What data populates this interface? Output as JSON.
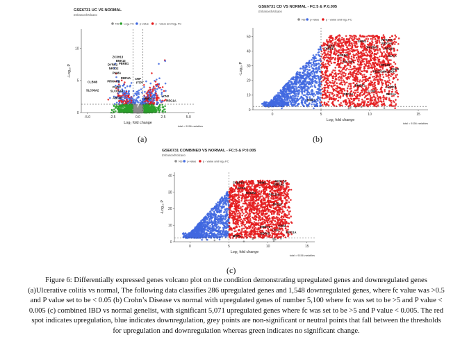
{
  "figure": {
    "label_a": "(a)",
    "label_b": "(b)",
    "label_c": "(c)",
    "caption": "Figure 6: Differentially expressed genes volcano plot on the condition demonstrating upregulated genes and downregulated genes (a)Ulcerative colitis vs normal, The following data classifies 286 upregulated genes and 1,548 downregulated genes, where fc value was >0.5 and P value set to be < 0.05 (b) Crohn’s Disease vs normal with upregulated genes of number 5,100 where fc was set to be >5 and P value < 0.005 (c) combined IBD vs normal genelist, with significant 5,071 upregulated genes where fc was set to be >5 and P value < 0.005. The red spot indicates upregulation, blue indicates downregulation, grey points are non-significant or neutral points that fall between the thresholds for upregulation and downregulation whereas green indicates no significant change."
  },
  "colors": {
    "ns": "#8c8c8c",
    "logfc": "#2ca02c",
    "pvalue": "#4169e1",
    "both": "#e41a1c",
    "axis": "#444444"
  },
  "chart_data": [
    {
      "type": "scatter",
      "title": "GSE6731 UC VS NORMAL",
      "subtitle": "EnhancedVolcano",
      "xlabel": "Log₂ fold change",
      "ylabel": "-Log₁₀ P",
      "xlim": [
        -5.6,
        5.6
      ],
      "ylim": [
        0,
        13
      ],
      "xticks": [
        -5.0,
        -2.5,
        0.0,
        2.5,
        5.0
      ],
      "yticks": [
        0,
        5,
        10
      ],
      "vlines": [
        -0.5,
        0.5
      ],
      "hline": 1.3,
      "legend": [
        "NS",
        "Log₂ FC",
        "p-value",
        "p - value and log₂ FC"
      ],
      "legend_position": "top",
      "footer": "total = 9156 variables",
      "labels": [
        {
          "text": "ZC3H13",
          "x": -2.0,
          "y": 8.5
        },
        {
          "text": "BNK13",
          "x": -1.7,
          "y": 7.9
        },
        {
          "text": "DYRK2",
          "x": -2.5,
          "y": 7.3
        },
        {
          "text": "PBRB1",
          "x": -1.4,
          "y": 7.5
        },
        {
          "text": "NR1D2",
          "x": -2.4,
          "y": 6.7
        },
        {
          "text": "PNMA",
          "x": -2.1,
          "y": 6.0
        },
        {
          "text": "CLBN8",
          "x": -4.5,
          "y": 4.6
        },
        {
          "text": "PRMACB",
          "x": -2.4,
          "y": 4.7
        },
        {
          "text": "RBP4A",
          "x": -1.2,
          "y": 5.2
        },
        {
          "text": "CRP",
          "x": 0.0,
          "y": 5.1
        },
        {
          "text": "PTPT",
          "x": 0.2,
          "y": 4.5
        },
        {
          "text": "PLIN2",
          "x": -2.1,
          "y": 3.8
        },
        {
          "text": "SLC06A2",
          "x": -4.5,
          "y": 3.3
        },
        {
          "text": "SLC6A14",
          "x": -2.1,
          "y": 3.2
        },
        {
          "text": "ABCB1",
          "x": -2.0,
          "y": 2.1
        },
        {
          "text": "MMP9",
          "x": 1.0,
          "y": 2.0
        },
        {
          "text": "LCN2",
          "x": 2.7,
          "y": 2.4
        },
        {
          "text": "REG1A",
          "x": 3.3,
          "y": 1.7
        }
      ]
    },
    {
      "type": "scatter",
      "title": "GSE6731 CD VS NORMAL - FC:5 & P:0.005",
      "subtitle": "EnhancedVolcano",
      "xlabel": "Log₂ fold change",
      "ylabel": "-Log₁₀ P",
      "xlim": [
        -2,
        16
      ],
      "ylim": [
        0,
        56
      ],
      "xticks": [
        0,
        5,
        10,
        15
      ],
      "yticks": [
        0,
        10,
        20,
        30,
        40,
        50
      ],
      "vlines": [
        5
      ],
      "hline": 2.3,
      "legend": [
        "NS",
        "p-value",
        "p - value and log₂ FC"
      ],
      "legend_position": "top",
      "footer": "total = 9156 variables",
      "labels": [
        {
          "text": "RPS27A",
          "x": 11.8,
          "y": 47
        },
        {
          "text": "GRM4",
          "x": 9.2,
          "y": 46
        },
        {
          "text": "EEF1A1",
          "x": 11.8,
          "y": 44.5
        },
        {
          "text": "STK4",
          "x": 6.0,
          "y": 43
        },
        {
          "text": "SNOB03",
          "x": 10.2,
          "y": 42
        },
        {
          "text": "RPS20",
          "x": 12.0,
          "y": 41
        },
        {
          "text": "FKBP5",
          "x": 5.8,
          "y": 41
        },
        {
          "text": "NSUN2",
          "x": 7.3,
          "y": 36.5
        },
        {
          "text": "HLA-A",
          "x": 12.3,
          "y": 36
        },
        {
          "text": "RPL23A",
          "x": 7.8,
          "y": 32
        },
        {
          "text": "RPL28",
          "x": 11.6,
          "y": 30
        },
        {
          "text": "IGHM",
          "x": 12.6,
          "y": 27
        },
        {
          "text": "KD2/IGHA1//IGH",
          "x": 11.5,
          "y": 25.5
        },
        {
          "text": "DMBT1",
          "x": 9.0,
          "y": 16
        },
        {
          "text": "SPINK4",
          "x": 12.2,
          "y": 15
        },
        {
          "text": "LCN2",
          "x": 10.2,
          "y": 12
        },
        {
          "text": "REG1A",
          "x": 12.2,
          "y": 10
        },
        {
          "text": "DEFA5",
          "x": 7.8,
          "y": 10
        },
        {
          "text": "MMP1",
          "x": 4.0,
          "y": 6
        }
      ]
    },
    {
      "type": "scatter",
      "title": "GSE6731 COMBINED VS NORMAL - FC:5 & P:0.005",
      "subtitle": "EnhancedVolcano",
      "xlabel": "Log₂ fold change",
      "ylabel": "-Log₁₀ P",
      "xlim": [
        -2,
        16
      ],
      "ylim": [
        0,
        42
      ],
      "xticks": [
        0,
        5,
        10,
        15
      ],
      "yticks": [
        0,
        10,
        20,
        30,
        40
      ],
      "vlines": [
        5
      ],
      "hline": 2.3,
      "legend": [
        "NS",
        "p-value",
        "p - value and log₂ FC"
      ],
      "legend_position": "top",
      "footer": "total = 9156 variables",
      "labels": [
        {
          "text": "RPS27A",
          "x": 11.6,
          "y": 36
        },
        {
          "text": "GRM4",
          "x": 9.2,
          "y": 35
        },
        {
          "text": "EEF1A1",
          "x": 11.4,
          "y": 34
        },
        {
          "text": "FKBP15",
          "x": 6.2,
          "y": 35
        },
        {
          "text": "STK4",
          "x": 6.6,
          "y": 32
        },
        {
          "text": "NSUN2",
          "x": 7.8,
          "y": 29
        },
        {
          "text": "RPL23A",
          "x": 10.8,
          "y": 28
        },
        {
          "text": "RPS20",
          "x": 11.2,
          "y": 22
        },
        {
          "text": "IGHM",
          "x": 11.8,
          "y": 9
        },
        {
          "text": "DMBT1",
          "x": 9.6,
          "y": 8.5
        },
        {
          "text": "LCN2",
          "x": 11.0,
          "y": 6.5
        },
        {
          "text": "REG1A",
          "x": 13.0,
          "y": 5
        },
        {
          "text": "DEFA5",
          "x": 9.6,
          "y": 4.5
        },
        {
          "text": "MMP1",
          "x": 6.0,
          "y": 3
        }
      ]
    }
  ]
}
